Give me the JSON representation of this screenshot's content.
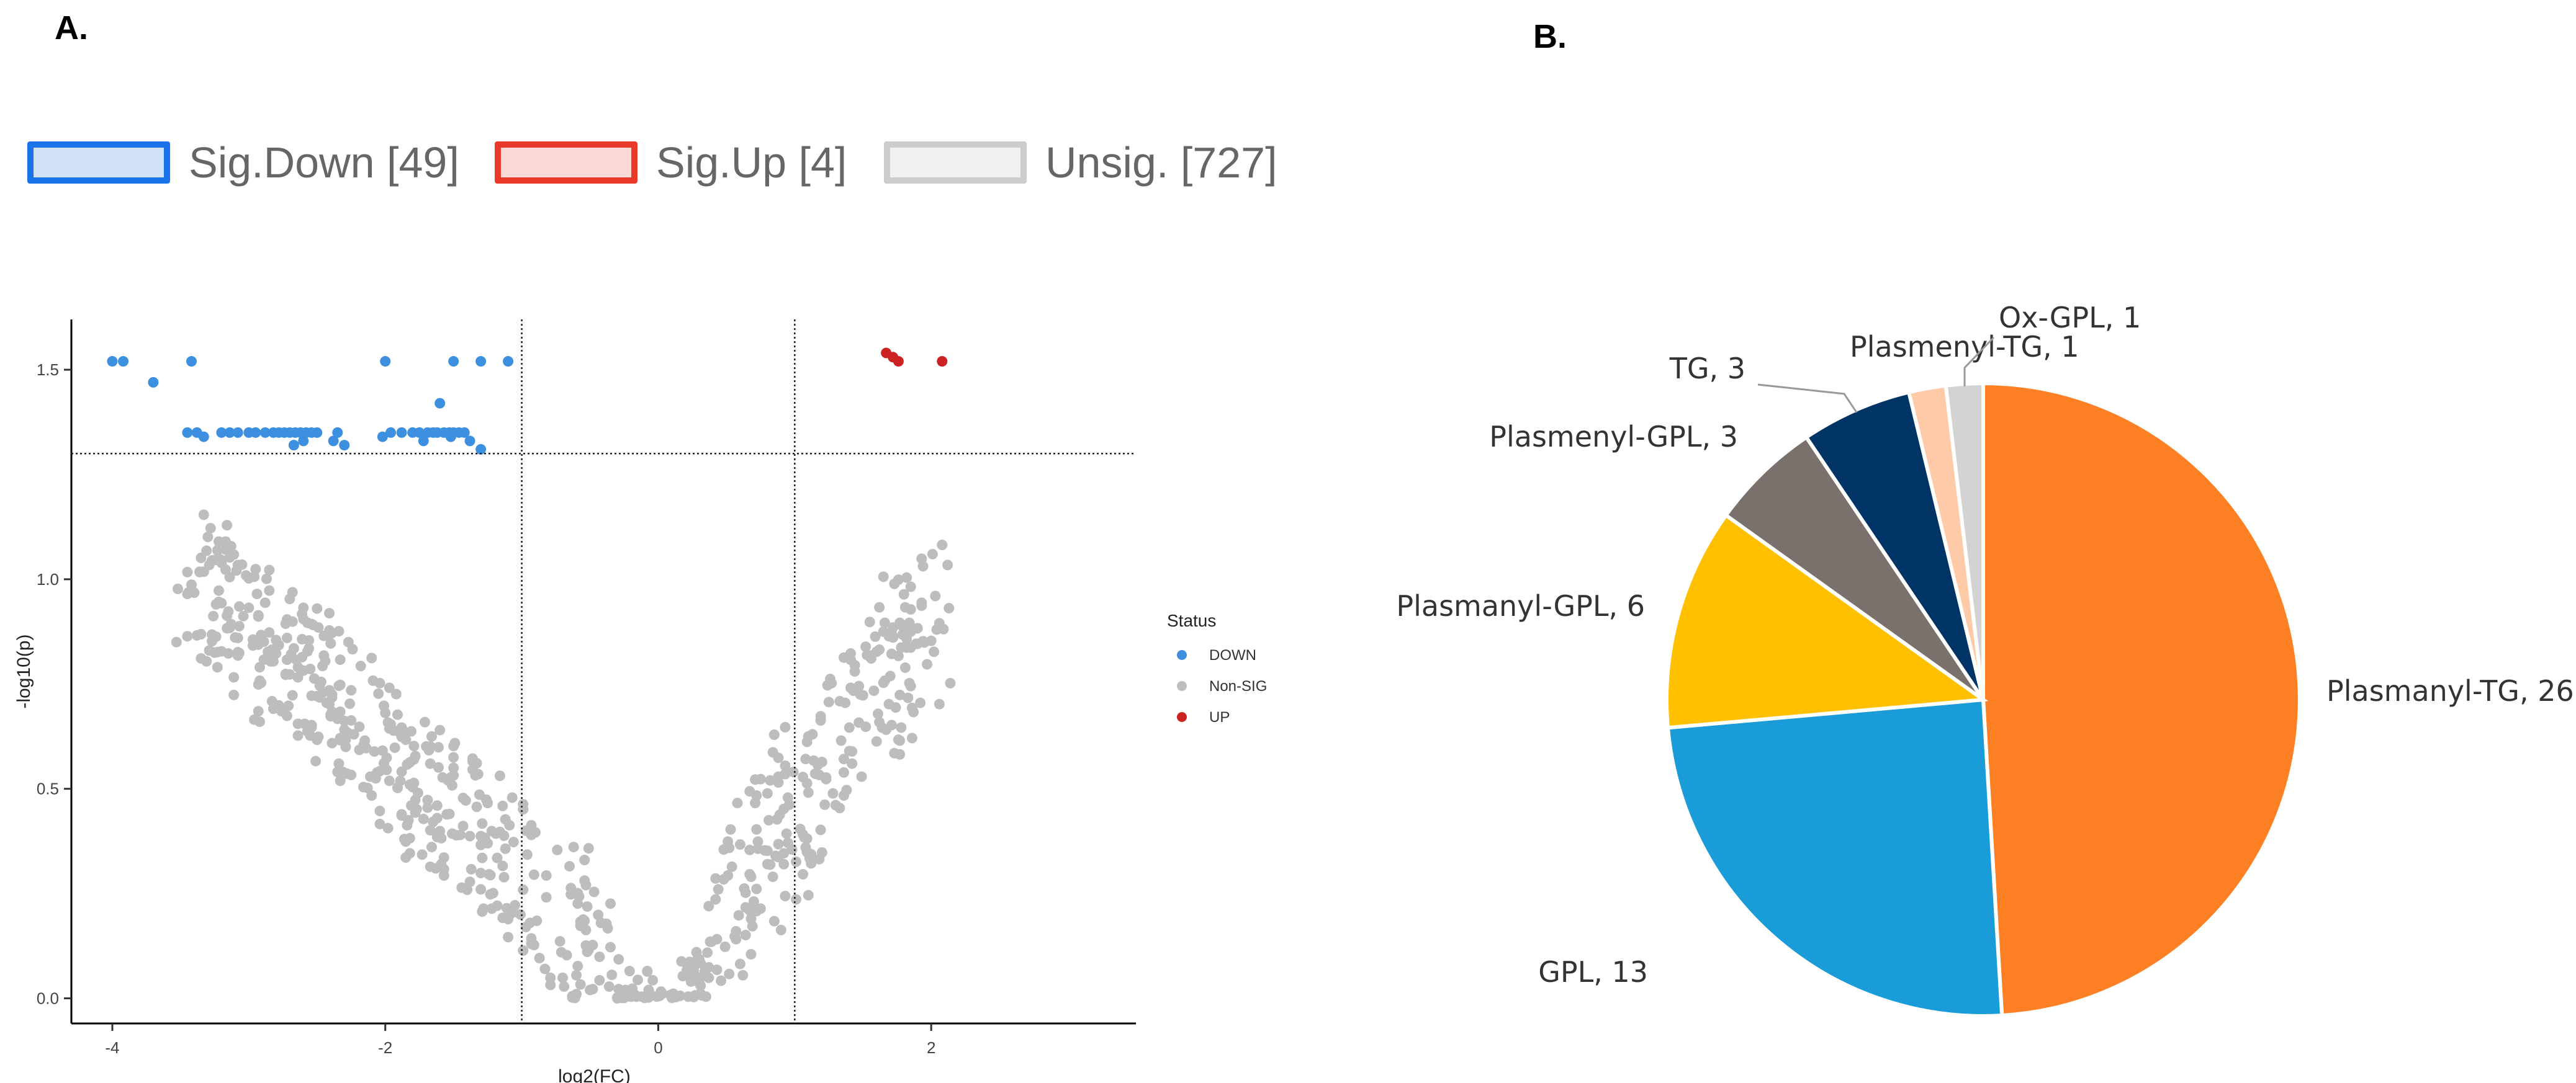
{
  "panel_a_label": "A.",
  "panel_b_label": "B.",
  "legend": [
    {
      "label": "Sig.Down [49]",
      "fill": "#cfe0f7",
      "border": "#1a73e8"
    },
    {
      "label": "Sig.Up [4]",
      "fill": "#fbd9d6",
      "border": "#e8392b"
    },
    {
      "label": "Unsig. [727]",
      "fill": "#f1f1f1",
      "border": "#cccccc"
    }
  ],
  "chart_data": [
    {
      "type": "scatter",
      "xlabel": "log2(FC)",
      "ylabel": "-log10(p)",
      "xlim": [
        -4.3,
        3.5
      ],
      "ylim": [
        -0.06,
        1.62
      ],
      "x_ticks": [
        -4,
        -2,
        0,
        2
      ],
      "y_ticks": [
        0.0,
        0.5,
        1.0,
        1.5
      ],
      "x_tick_labels": [
        "-4",
        "-2",
        "0",
        "2"
      ],
      "y_tick_labels": [
        "0.0",
        "0.5",
        "1.0",
        "1.5"
      ],
      "thresholds": {
        "x": [
          -1,
          1
        ],
        "y": 1.3
      },
      "legend_title": "Status",
      "legend_position": "right",
      "series": [
        {
          "name": "DOWN",
          "color": "#3d8fe0",
          "points": [
            [
              -4.0,
              1.52
            ],
            [
              -3.92,
              1.52
            ],
            [
              -3.7,
              1.47
            ],
            [
              -3.42,
              1.52
            ],
            [
              -3.45,
              1.35
            ],
            [
              -3.38,
              1.35
            ],
            [
              -3.33,
              1.34
            ],
            [
              -3.2,
              1.35
            ],
            [
              -3.14,
              1.35
            ],
            [
              -3.08,
              1.35
            ],
            [
              -3.0,
              1.35
            ],
            [
              -2.95,
              1.35
            ],
            [
              -2.88,
              1.35
            ],
            [
              -2.82,
              1.35
            ],
            [
              -2.78,
              1.35
            ],
            [
              -2.74,
              1.35
            ],
            [
              -2.7,
              1.35
            ],
            [
              -2.66,
              1.35
            ],
            [
              -2.62,
              1.35
            ],
            [
              -2.58,
              1.35
            ],
            [
              -2.54,
              1.35
            ],
            [
              -2.5,
              1.35
            ],
            [
              -2.67,
              1.32
            ],
            [
              -2.6,
              1.33
            ],
            [
              -2.35,
              1.35
            ],
            [
              -2.38,
              1.33
            ],
            [
              -2.3,
              1.32
            ],
            [
              -2.0,
              1.52
            ],
            [
              -2.02,
              1.34
            ],
            [
              -1.96,
              1.35
            ],
            [
              -1.88,
              1.35
            ],
            [
              -1.8,
              1.35
            ],
            [
              -1.75,
              1.35
            ],
            [
              -1.72,
              1.33
            ],
            [
              -1.69,
              1.35
            ],
            [
              -1.65,
              1.35
            ],
            [
              -1.62,
              1.35
            ],
            [
              -1.6,
              1.42
            ],
            [
              -1.57,
              1.35
            ],
            [
              -1.53,
              1.35
            ],
            [
              -1.5,
              1.35
            ],
            [
              -1.46,
              1.35
            ],
            [
              -1.5,
              1.52
            ],
            [
              -1.3,
              1.52
            ],
            [
              -1.1,
              1.52
            ],
            [
              -1.42,
              1.35
            ],
            [
              -1.38,
              1.33
            ],
            [
              -1.3,
              1.31
            ],
            [
              -1.52,
              1.34
            ]
          ]
        },
        {
          "name": "Non-SIG",
          "color": "#bdbdbd",
          "points": []
        },
        {
          "name": "UP",
          "color": "#cc2222",
          "points": [
            [
              1.67,
              1.54
            ],
            [
              1.76,
              1.52
            ],
            [
              2.08,
              1.52
            ],
            [
              1.72,
              1.53
            ]
          ]
        }
      ]
    },
    {
      "type": "pie",
      "slices": [
        {
          "label": "Plasmanyl-TG, 26",
          "value": 26,
          "color": "#fd8025"
        },
        {
          "label": "GPL, 13",
          "value": 13,
          "color": "#1a9cd8"
        },
        {
          "label": "Plasmanyl-GPL, 6",
          "value": 6,
          "color": "#ffc000"
        },
        {
          "label": "Plasmenyl-GPL, 3",
          "value": 3,
          "color": "#7a716c"
        },
        {
          "label": "TG, 3",
          "value": 3,
          "color": "#003366"
        },
        {
          "label": "Plasmenyl-TG, 1",
          "value": 1,
          "color": "#ffcaa8"
        },
        {
          "label": "Ox-GPL, 1",
          "value": 1,
          "color": "#d3d3d3"
        }
      ]
    }
  ]
}
